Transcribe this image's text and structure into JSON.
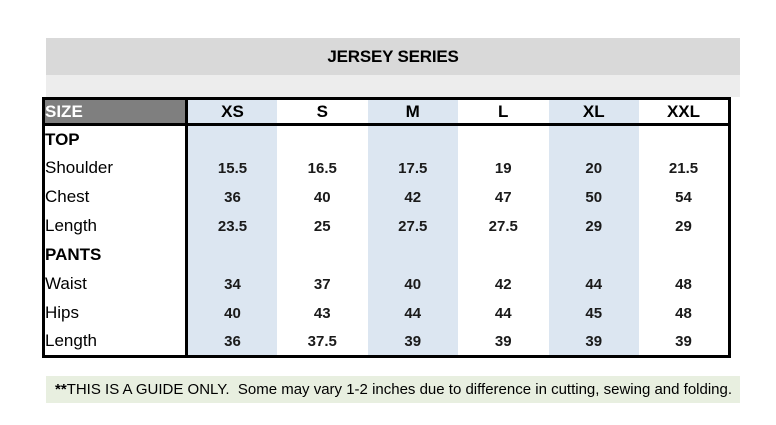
{
  "title": {
    "text": "JERSEY SERIES",
    "background": "#d9d9d9"
  },
  "table": {
    "corner_label": "SIZE",
    "corner_bg": "#7f7f7f",
    "stripe_color": "#dce6f1",
    "columns": [
      "XS",
      "S",
      "M",
      "L",
      "XL",
      "XXL"
    ],
    "rows": [
      {
        "label": "TOP",
        "values": [
          "",
          "",
          "",
          "",
          "",
          ""
        ]
      },
      {
        "label": "Shoulder",
        "values": [
          "15.5",
          "16.5",
          "17.5",
          "19",
          "20",
          "21.5"
        ]
      },
      {
        "label": "Chest",
        "values": [
          "36",
          "40",
          "42",
          "47",
          "50",
          "54"
        ]
      },
      {
        "label": "Length",
        "values": [
          "23.5",
          "25",
          "27.5",
          "27.5",
          "29",
          "29"
        ]
      },
      {
        "label": "PANTS",
        "values": [
          "",
          "",
          "",
          "",
          "",
          ""
        ]
      },
      {
        "label": "Waist",
        "values": [
          "34",
          "37",
          "40",
          "42",
          "44",
          "48"
        ]
      },
      {
        "label": "Hips",
        "values": [
          "40",
          "43",
          "44",
          "44",
          "45",
          "48"
        ]
      },
      {
        "label": "Length",
        "values": [
          "36",
          "37.5",
          "39",
          "39",
          "39",
          "39"
        ]
      }
    ]
  },
  "note": {
    "prefix": "**",
    "body": "THIS IS A GUIDE ONLY.  Some may vary 1-2 inches due to difference in cutting, sewing and folding.",
    "background": "#e8efe0"
  },
  "chart_data": {
    "type": "table",
    "title": "JERSEY SERIES",
    "columns": [
      "SIZE",
      "XS",
      "S",
      "M",
      "L",
      "XL",
      "XXL"
    ],
    "sections": [
      {
        "name": "TOP",
        "rows": [
          [
            "Shoulder",
            15.5,
            16.5,
            17.5,
            19,
            20,
            21.5
          ],
          [
            "Chest",
            36,
            40,
            42,
            47,
            50,
            54
          ],
          [
            "Length",
            23.5,
            25,
            27.5,
            27.5,
            29,
            29
          ]
        ]
      },
      {
        "name": "PANTS",
        "rows": [
          [
            "Waist",
            34,
            37,
            40,
            42,
            44,
            48
          ],
          [
            "Hips",
            40,
            43,
            44,
            44,
            45,
            48
          ],
          [
            "Length",
            36,
            37.5,
            39,
            39,
            39,
            39
          ]
        ]
      }
    ],
    "note": "**THIS IS A GUIDE ONLY.  Some may vary 1-2 inches due to difference in cutting, sewing and folding."
  }
}
